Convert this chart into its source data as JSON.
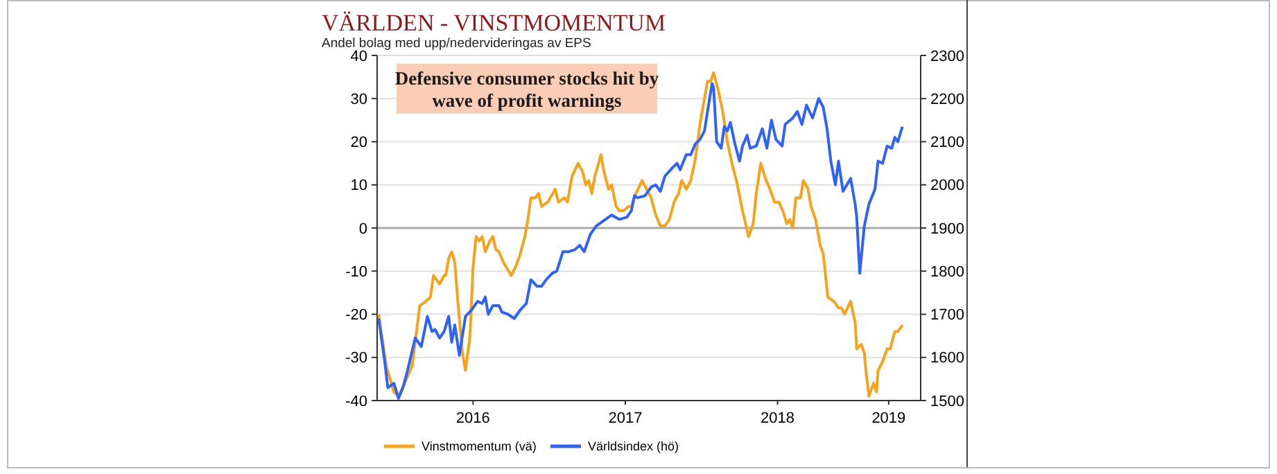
{
  "chart_data": {
    "type": "line",
    "title": "VÄRLDEN - VINSTMOMENTUM",
    "subtitle": "Andel bolag med upp/nedervideringas av EPS",
    "annotations": [
      "Defensive consumer stocks hit by wave of profit warnings"
    ],
    "xlim": [
      2015.87,
      2019.44
    ],
    "xticks": [
      {
        "value": 2016.5,
        "label": "2016"
      },
      {
        "value": 2017.5,
        "label": "2017"
      },
      {
        "value": 2018.5,
        "label": "2018"
      },
      {
        "value": 2019.23,
        "label": "2019"
      }
    ],
    "ylim": [
      -40,
      40
    ],
    "yticks": [
      -40,
      -30,
      -20,
      -10,
      0,
      10,
      20,
      30,
      40
    ],
    "y2lim": [
      1500,
      2300
    ],
    "y2ticks": [
      1500,
      1600,
      1700,
      1800,
      1900,
      2000,
      2100,
      2200,
      2300
    ],
    "grid": "y",
    "legend": "bottom",
    "line_style": "solid",
    "marker": "none",
    "series": [
      {
        "name": "Vinstmomentum (vä)",
        "color": "#f7a21b",
        "x": [
          2015.88,
          2015.93,
          2015.98,
          2016.01,
          2016.05,
          2016.1,
          2016.15,
          2016.19,
          2016.22,
          2016.24,
          2016.28,
          2016.31,
          2016.32,
          2016.34,
          2016.36,
          2016.38,
          2016.4,
          2016.43,
          2016.45,
          2016.48,
          2016.5,
          2016.52,
          2016.54,
          2016.56,
          2016.58,
          2016.61,
          2016.63,
          2016.65,
          2016.67,
          2016.7,
          2016.75,
          2016.78,
          2016.81,
          2016.84,
          2016.86,
          2016.88,
          2016.91,
          2016.93,
          2016.95,
          2016.99,
          2017.04,
          2017.06,
          2017.1,
          2017.12,
          2017.15,
          2017.19,
          2017.22,
          2017.24,
          2017.26,
          2017.28,
          2017.3,
          2017.34,
          2017.36,
          2017.39,
          2017.41,
          2017.44,
          2017.46,
          2017.49,
          2017.52,
          2017.54,
          2017.57,
          2017.61,
          2017.64,
          2017.67,
          2017.7,
          2017.73,
          2017.76,
          2017.79,
          2017.82,
          2017.85,
          2017.87,
          2017.9,
          2017.93,
          2017.96,
          2017.99,
          2018.04,
          2018.06,
          2018.08,
          2018.11,
          2018.14,
          2018.17,
          2018.2,
          2018.23,
          2018.27,
          2018.31,
          2018.34,
          2018.36,
          2018.39,
          2018.42,
          2018.45,
          2018.48,
          2018.51,
          2018.54,
          2018.56,
          2018.58,
          2018.6,
          2018.62,
          2018.65,
          2018.67,
          2018.7,
          2018.72,
          2018.75,
          2018.78,
          2018.8,
          2018.83,
          2018.87,
          2018.9,
          2018.92,
          2018.94,
          2018.96,
          2018.98,
          2019.01,
          2019.02,
          2019.05,
          2019.07,
          2019.08,
          2019.1,
          2019.13,
          2019.15,
          2019.16,
          2019.19,
          2019.22,
          2019.24,
          2019.27,
          2019.29,
          2019.32
        ],
        "values": [
          -20,
          -32,
          -38,
          -39,
          -36,
          -32,
          -18,
          -17,
          -16,
          -11,
          -13,
          -11,
          -11,
          -7,
          -5.5,
          -8,
          -17,
          -29,
          -33,
          -25,
          -9,
          -2,
          -3,
          -2,
          -5.5,
          -3,
          -2,
          -5,
          -5.5,
          -8,
          -11,
          -9,
          -6,
          -2,
          2,
          7,
          7,
          8,
          5,
          6,
          9,
          6,
          7,
          6,
          12,
          15,
          13,
          10,
          11,
          8,
          12,
          17,
          13,
          9,
          10,
          5,
          4,
          4,
          5,
          5,
          8,
          11,
          9,
          7,
          3,
          0.5,
          0.5,
          2,
          6,
          8,
          11,
          9,
          11,
          16,
          24,
          34,
          34,
          36,
          32,
          27,
          20,
          15,
          11,
          4,
          -2,
          1,
          8,
          15,
          11.5,
          9,
          6,
          6,
          3.5,
          1,
          2,
          0,
          7,
          7,
          11,
          9,
          5,
          2,
          -4,
          -6,
          -16,
          -17,
          -18.5,
          -18.5,
          -20,
          -18.5,
          -17,
          -22,
          -28,
          -27,
          -29,
          -33,
          -39,
          -36,
          -38,
          -33,
          -31,
          -28,
          -28,
          -24,
          -24,
          -22.5
        ]
      },
      {
        "name": "Världsindex (hö)",
        "color": "#2f63f5",
        "axis": "y2",
        "x": [
          2015.88,
          2015.92,
          2015.94,
          2015.98,
          2016.01,
          2016.04,
          2016.07,
          2016.12,
          2016.16,
          2016.2,
          2016.23,
          2016.25,
          2016.28,
          2016.31,
          2016.34,
          2016.36,
          2016.38,
          2016.41,
          2016.45,
          2016.49,
          2016.53,
          2016.56,
          2016.58,
          2016.6,
          2016.63,
          2016.67,
          2016.69,
          2016.73,
          2016.77,
          2016.81,
          2016.85,
          2016.88,
          2016.92,
          2016.95,
          2016.98,
          2017.02,
          2017.05,
          2017.09,
          2017.13,
          2017.17,
          2017.2,
          2017.23,
          2017.27,
          2017.31,
          2017.35,
          2017.41,
          2017.46,
          2017.51,
          2017.54,
          2017.56,
          2017.58,
          2017.63,
          2017.67,
          2017.7,
          2017.73,
          2017.76,
          2017.81,
          2017.84,
          2017.86,
          2017.9,
          2017.93,
          2017.96,
          2017.99,
          2018.02,
          2018.04,
          2018.07,
          2018.08,
          2018.1,
          2018.13,
          2018.15,
          2018.17,
          2018.19,
          2018.22,
          2018.25,
          2018.27,
          2018.3,
          2018.32,
          2018.36,
          2018.4,
          2018.43,
          2018.46,
          2018.49,
          2018.53,
          2018.55,
          2018.6,
          2018.63,
          2018.66,
          2018.69,
          2018.73,
          2018.77,
          2018.8,
          2018.825,
          2018.85,
          2018.88,
          2018.9,
          2018.93,
          2018.98,
          2019.01,
          2019.02,
          2019.04,
          2019.07,
          2019.1,
          2019.14,
          2019.16,
          2019.19,
          2019.22,
          2019.25,
          2019.27,
          2019.29,
          2019.32
        ],
        "values": [
          1690,
          1590,
          1530,
          1540,
          1505,
          1530,
          1570,
          1645,
          1625,
          1695,
          1660,
          1665,
          1645,
          1660,
          1695,
          1635,
          1675,
          1605,
          1695,
          1710,
          1730,
          1725,
          1740,
          1700,
          1720,
          1720,
          1705,
          1700,
          1690,
          1710,
          1725,
          1780,
          1765,
          1765,
          1780,
          1795,
          1800,
          1845,
          1845,
          1850,
          1860,
          1845,
          1885,
          1905,
          1915,
          1930,
          1920,
          1925,
          1940,
          1975,
          1970,
          1975,
          1995,
          2000,
          1985,
          2020,
          2040,
          2050,
          2035,
          2070,
          2070,
          2095,
          2105,
          2125,
          2170,
          2235,
          2225,
          2100,
          2085,
          2135,
          2125,
          2145,
          2095,
          2055,
          2090,
          2115,
          2085,
          2090,
          2130,
          2085,
          2150,
          2105,
          2090,
          2140,
          2155,
          2170,
          2140,
          2185,
          2155,
          2200,
          2180,
          2130,
          2055,
          2000,
          2055,
          1985,
          2015,
          1955,
          1925,
          1795,
          1905,
          1955,
          1990,
          2055,
          2050,
          2090,
          2085,
          2110,
          2100,
          2135
        ]
      }
    ]
  }
}
